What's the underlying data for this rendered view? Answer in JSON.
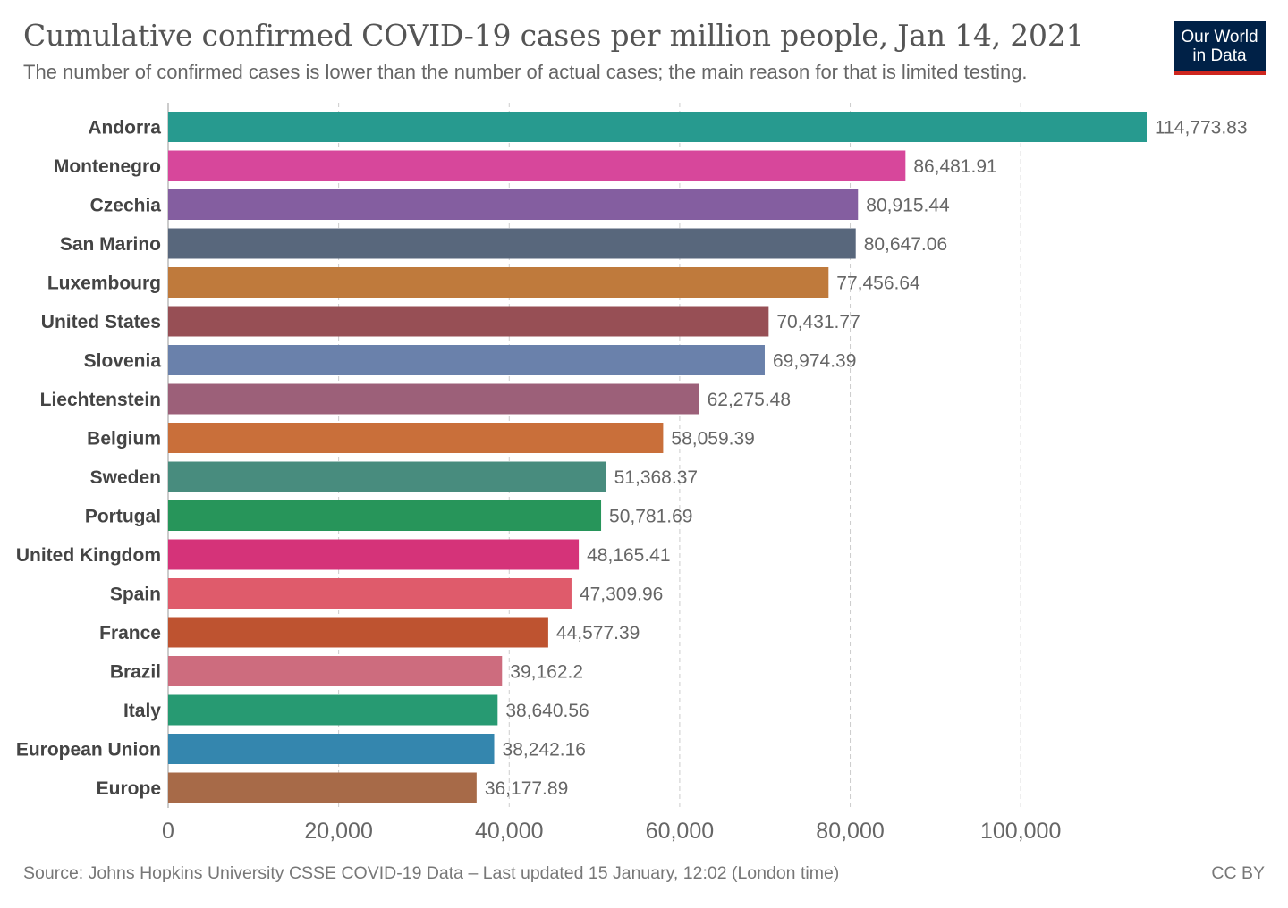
{
  "header": {
    "title": "Cumulative confirmed COVID-19 cases per million people, Jan 14, 2021",
    "subtitle": "The number of confirmed cases is lower than the number of actual cases; the main reason for that is limited testing."
  },
  "logo": {
    "line1": "Our World",
    "line2": "in Data"
  },
  "footer": {
    "source": "Source: Johns Hopkins University CSSE COVID-19 Data – Last updated 15 January, 12:02 (London time)",
    "license": "CC BY"
  },
  "chart_data": {
    "type": "bar",
    "orientation": "horizontal",
    "categories": [
      "Andorra",
      "Montenegro",
      "Czechia",
      "San Marino",
      "Luxembourg",
      "United States",
      "Slovenia",
      "Liechtenstein",
      "Belgium",
      "Sweden",
      "Portugal",
      "United Kingdom",
      "Spain",
      "France",
      "Brazil",
      "Italy",
      "European Union",
      "Europe"
    ],
    "values": [
      114773.83,
      86481.91,
      80915.44,
      80647.06,
      77456.64,
      70431.77,
      69974.39,
      62275.48,
      58059.39,
      51368.37,
      50781.69,
      48165.41,
      47309.96,
      44577.39,
      39162.2,
      38640.56,
      38242.16,
      36177.89
    ],
    "value_labels": [
      "114,773.83",
      "86,481.91",
      "80,915.44",
      "80,647.06",
      "77,456.64",
      "70,431.77",
      "69,974.39",
      "62,275.48",
      "58,059.39",
      "51,368.37",
      "50,781.69",
      "48,165.41",
      "47,309.96",
      "44,577.39",
      "39,162.2",
      "38,640.56",
      "38,242.16",
      "36,177.89"
    ],
    "colors": [
      "#279a8f",
      "#d7479b",
      "#845ea0",
      "#58677c",
      "#bf7a3c",
      "#974f55",
      "#6a81ab",
      "#9c6079",
      "#c96f3a",
      "#488c7e",
      "#27955a",
      "#d53379",
      "#df5b6b",
      "#be5330",
      "#cd6c7e",
      "#279a72",
      "#3486ae",
      "#a76a48"
    ],
    "x_ticks": [
      0,
      20000,
      40000,
      60000,
      80000,
      100000
    ],
    "x_tick_labels": [
      "0",
      "20,000",
      "40,000",
      "60,000",
      "80,000",
      "100,000"
    ],
    "xlim": [
      0,
      114773.83
    ],
    "grid": "vertical-dashed",
    "title": "Cumulative confirmed COVID-19 cases per million people, Jan 14, 2021"
  }
}
